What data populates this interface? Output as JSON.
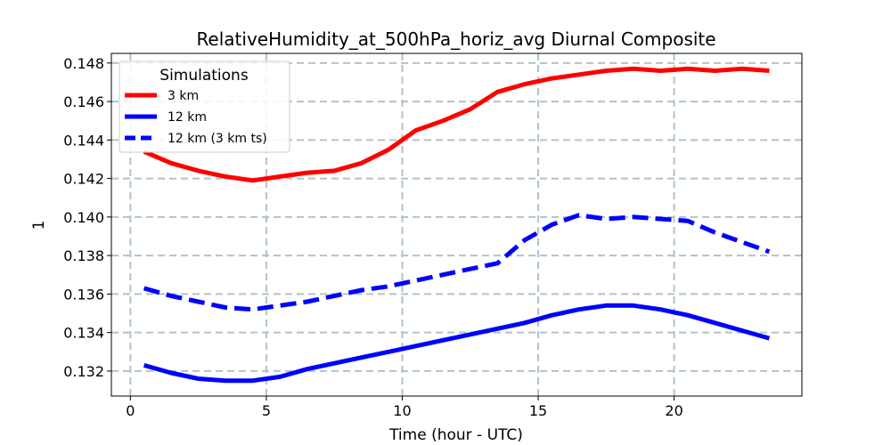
{
  "chart_data": {
    "type": "line",
    "title": "RelativeHumidity_at_500hPa_horiz_avg Diurnal Composite",
    "xlabel": "Time (hour - UTC)",
    "ylabel": "1",
    "xlim": [
      -0.7,
      24.7
    ],
    "ylim": [
      0.1307,
      0.1485
    ],
    "xticks": [
      0,
      5,
      10,
      15,
      20
    ],
    "yticks": [
      0.132,
      0.134,
      0.136,
      0.138,
      0.14,
      0.142,
      0.144,
      0.146,
      0.148
    ],
    "grid": true,
    "legend": {
      "title": "Simulations",
      "placement": "top-left"
    },
    "x": [
      0.5,
      1.5,
      2.5,
      3.5,
      4.5,
      5.5,
      6.5,
      7.5,
      8.5,
      9.5,
      10.5,
      11.5,
      12.5,
      13.5,
      14.5,
      15.5,
      16.5,
      17.5,
      18.5,
      19.5,
      20.5,
      21.5,
      22.5,
      23.5
    ],
    "series": [
      {
        "name": "3 km",
        "color": "#ff0000",
        "dash": "solid",
        "values": [
          0.1434,
          0.1428,
          0.1424,
          0.1421,
          0.1419,
          0.1421,
          0.1423,
          0.1424,
          0.1428,
          0.1435,
          0.1445,
          0.145,
          0.1456,
          0.1465,
          0.1469,
          0.1472,
          0.1474,
          0.1476,
          0.1477,
          0.1476,
          0.1477,
          0.1476,
          0.1477,
          0.1476
        ]
      },
      {
        "name": "12 km",
        "color": "#0000ff",
        "dash": "solid",
        "values": [
          0.1323,
          0.1319,
          0.1316,
          0.1315,
          0.1315,
          0.1317,
          0.1321,
          0.1324,
          0.1327,
          0.133,
          0.1333,
          0.1336,
          0.1339,
          0.1342,
          0.1345,
          0.1349,
          0.1352,
          0.1354,
          0.1354,
          0.1352,
          0.1349,
          0.1345,
          0.1341,
          0.1337
        ]
      },
      {
        "name": "12 km (3 km ts)",
        "color": "#0000ff",
        "dash": "dashed",
        "values": [
          0.1363,
          0.1359,
          0.1356,
          0.1353,
          0.1352,
          0.1354,
          0.1356,
          0.1359,
          0.1362,
          0.1364,
          0.1367,
          0.137,
          0.1373,
          0.1376,
          0.1388,
          0.1396,
          0.1401,
          0.1399,
          0.14,
          0.1399,
          0.1398,
          0.1392,
          0.1387,
          0.1382
        ]
      }
    ]
  }
}
